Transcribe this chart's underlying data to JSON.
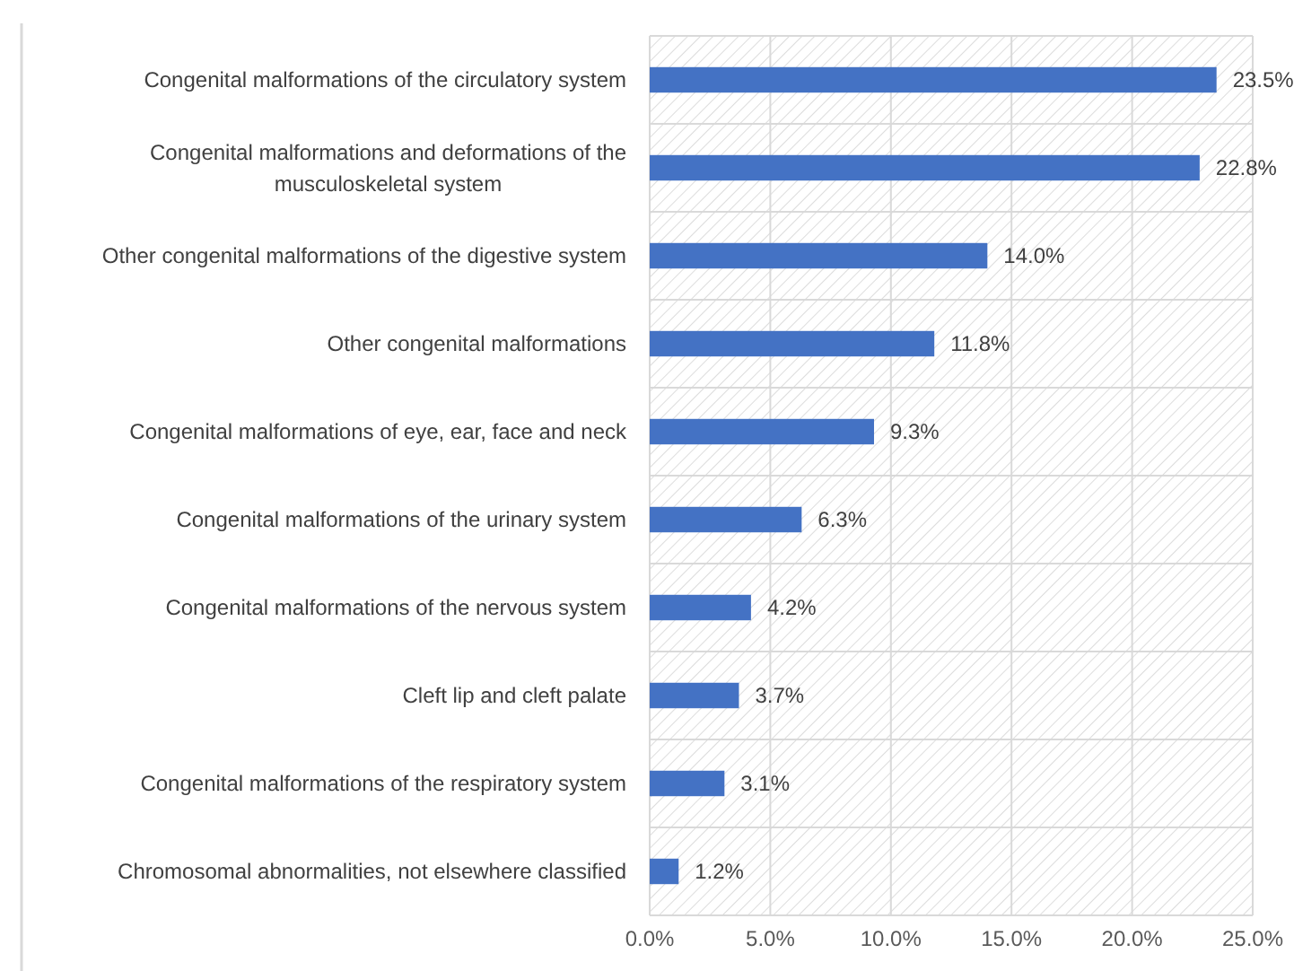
{
  "chart_data": {
    "type": "bar",
    "orientation": "horizontal",
    "categories": [
      "Congenital malformations of the circulatory system",
      "Congenital malformations and deformations of the musculoskeletal system",
      "Other congenital malformations of the digestive system",
      "Other congenital malformations",
      "Congenital malformations of eye, ear, face and neck",
      "Congenital malformations of the urinary system",
      "Congenital malformations of the nervous system",
      "Cleft lip and cleft palate",
      "Congenital malformations of the respiratory system",
      "Chromosomal abnormalities, not elsewhere classified"
    ],
    "values": [
      23.5,
      22.8,
      14.0,
      11.8,
      9.3,
      6.3,
      4.2,
      3.7,
      3.1,
      1.2
    ],
    "color": "#4472c4",
    "value_labels": [
      "23.5%",
      "22.8%",
      "14.0%",
      "11.8%",
      "9.3%",
      "6.3%",
      "4.2%",
      "3.7%",
      "3.1%",
      "1.2%"
    ],
    "xlim": [
      0,
      25
    ],
    "xticks": [
      {
        "value": 0,
        "label": "0.0%"
      },
      {
        "value": 5,
        "label": "5.0%"
      },
      {
        "value": 10,
        "label": "10.0%"
      },
      {
        "value": 15,
        "label": "15.0%"
      },
      {
        "value": 20,
        "label": "20.0%"
      },
      {
        "value": 25,
        "label": "25.0%"
      }
    ],
    "grid": true
  }
}
